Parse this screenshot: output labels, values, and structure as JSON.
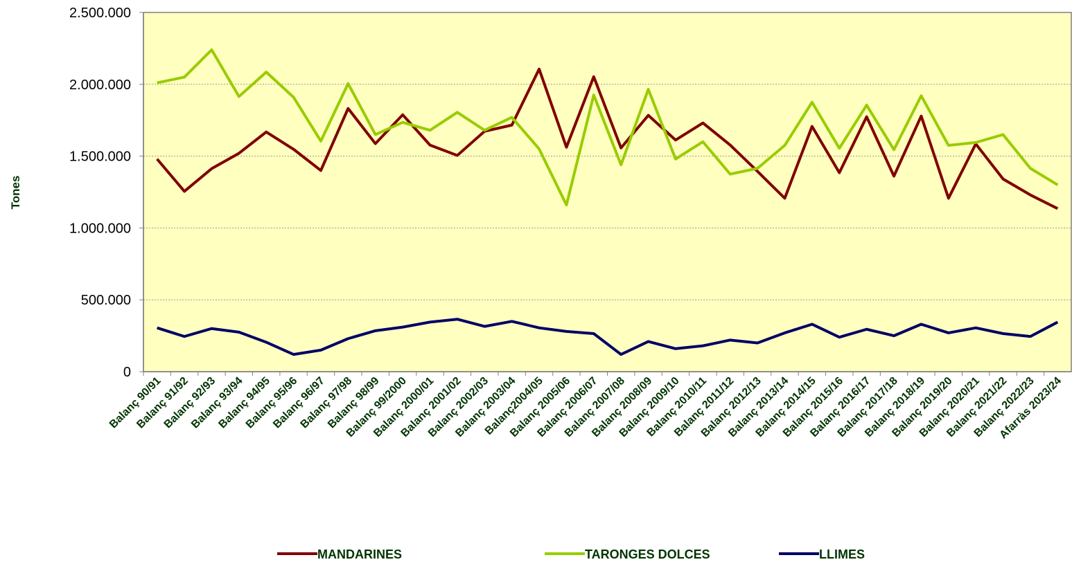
{
  "chart_data": {
    "type": "line",
    "y_label": "Tones",
    "categories": [
      "Balanç 90/91",
      "Balanç 91/92",
      "Balanç 92/93",
      "Balanç 93/94",
      "Balanç 94/95",
      "Balanç 95/96",
      "Balanç 96/97",
      "Balanç 97/98",
      "Balanç 98/99",
      "Balanç 99/2000",
      "Balanç 2000/01",
      "Balanç 2001/02",
      "Balanç 2002/03",
      "Balanç 2003/04",
      "Balanç2004/05",
      "Balanç 2005/06",
      "Balanç 2006/07",
      "Balanç 2007/08",
      "Balanç 2008/09",
      "Balanç 2009/10",
      "Balanç 2010/11",
      "Balanç 2011/12",
      "Balanç 2012/13",
      "Balanç 2013/14",
      "Balanç 2014/15",
      "Balanç 2015/16",
      "Balanç 2016/17",
      "Balanç 2017/18",
      "Balanç 2018/19",
      "Balanç 2019/20",
      "Balanç 2020/21",
      "Balanç 2021/22",
      "Balanç 2022/23",
      "Afarràs 2023/24"
    ],
    "series": [
      {
        "name": "MANDARINES",
        "color": "#800000",
        "values": [
          1480000,
          1255000,
          1413000,
          1520000,
          1668000,
          1548000,
          1400000,
          1832000,
          1587000,
          1788000,
          1577000,
          1505000,
          1673000,
          1716000,
          2106000,
          1562000,
          2053000,
          1557000,
          1784000,
          1612000,
          1731000,
          1577000,
          1394000,
          1207000,
          1707000,
          1385000,
          1774000,
          1361000,
          1779000,
          1207000,
          1585000,
          1341000,
          1230000,
          1135000
        ]
      },
      {
        "name": "TARONGES DOLCES",
        "color": "#99cc00",
        "values": [
          2010000,
          2050000,
          2240000,
          1915000,
          2085000,
          1910000,
          1605000,
          2005000,
          1650000,
          1735000,
          1680000,
          1805000,
          1680000,
          1770000,
          1550000,
          1160000,
          1925000,
          1440000,
          1965000,
          1480000,
          1600000,
          1375000,
          1415000,
          1575000,
          1875000,
          1555000,
          1855000,
          1545000,
          1920000,
          1575000,
          1595000,
          1650000,
          1415000,
          1300000
        ]
      },
      {
        "name": "LLIMES",
        "color": "#000066",
        "values": [
          305000,
          245000,
          300000,
          275000,
          205000,
          120000,
          150000,
          230000,
          285000,
          310000,
          345000,
          365000,
          315000,
          350000,
          305000,
          280000,
          265000,
          120000,
          210000,
          160000,
          180000,
          220000,
          200000,
          270000,
          330000,
          240000,
          295000,
          250000,
          330000,
          270000,
          305000,
          265000,
          245000,
          345000
        ]
      }
    ],
    "ylim": [
      0,
      2500000
    ],
    "yticks": [
      0,
      {
        "value": 500000,
        "label": "500.000"
      },
      {
        "value": 1000000,
        "label": "1.000.000"
      },
      {
        "value": 1500000,
        "label": "1.500.000"
      },
      {
        "value": 2000000,
        "label": "2.000.000"
      },
      {
        "value": 2500000,
        "label": "2.500.000"
      }
    ],
    "grid": true,
    "legend": "bottom",
    "plot_background": "#ffffc0"
  }
}
